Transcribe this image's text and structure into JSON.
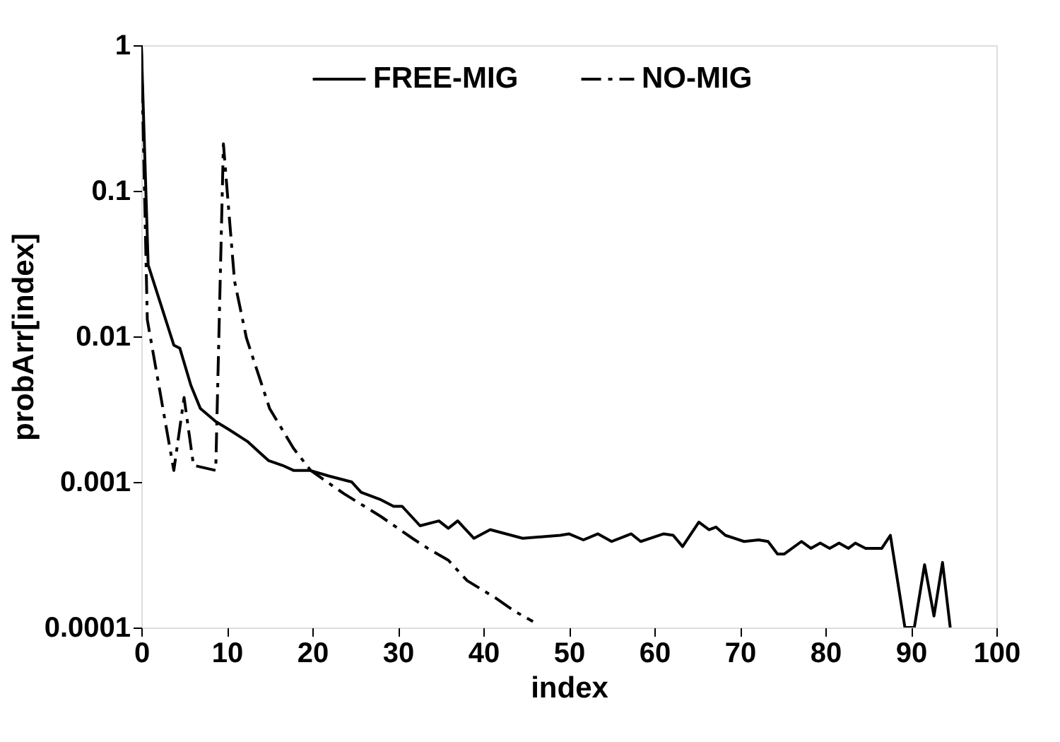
{
  "chart_data": {
    "type": "line",
    "xlabel": "index",
    "ylabel": "probArr[index]",
    "log": "y",
    "xlim": [
      0,
      100
    ],
    "xticks": [
      0,
      10,
      20,
      30,
      40,
      50,
      60,
      70,
      80,
      90,
      100
    ],
    "ylim": [
      0.0001,
      1
    ],
    "yticks": [
      0.0001,
      0.001,
      0.01,
      0.1,
      1
    ],
    "grid": false,
    "legend": "top",
    "marker": "none",
    "series": [
      {
        "name": "FREE-MIG",
        "color": "#000000",
        "line_style": "solid",
        "x": [
          0,
          0.8,
          3.8,
          4.5,
          5.8,
          6.9,
          8.7,
          10.2,
          12.4,
          13.8,
          14.9,
          16.5,
          17.8,
          19.7,
          21.9,
          24.6,
          25.7,
          27.9,
          29.5,
          30.5,
          32.6,
          34.8,
          35.9,
          37.0,
          38.9,
          40.8,
          44.6,
          49,
          50,
          51.7,
          53.4,
          55,
          57.3,
          58.4,
          61.1,
          62.2,
          63.3,
          65.2,
          66.4,
          67.2,
          68.3,
          70.5,
          72.2,
          73.3,
          74.4,
          75.2,
          77.2,
          78.3,
          79.4,
          80.5,
          81.6,
          82.7,
          83.5,
          84.7,
          86.6,
          87.6,
          89.3,
          90.4,
          91.6,
          92.7,
          93.7,
          94.6
        ],
        "values": [
          1,
          0.031,
          0.0087,
          0.0083,
          0.0046,
          0.0032,
          0.0026,
          0.0023,
          0.0019,
          0.0016,
          0.0014,
          0.0013,
          0.0012,
          0.0012,
          0.0011,
          0.001,
          0.00085,
          0.00076,
          0.00068,
          0.00068,
          0.0005,
          0.00054,
          0.00048,
          0.00054,
          0.00041,
          0.00047,
          0.00041,
          0.00043,
          0.00044,
          0.0004,
          0.00044,
          0.00039,
          0.00044,
          0.00039,
          0.00044,
          0.00043,
          0.00036,
          0.00053,
          0.00047,
          0.00049,
          0.00043,
          0.00039,
          0.0004,
          0.00039,
          0.00032,
          0.00032,
          0.00039,
          0.00035,
          0.00038,
          0.00035,
          0.00038,
          0.00035,
          0.00038,
          0.00035,
          0.00035,
          0.00043,
          0.0001,
          0.0001,
          0.00027,
          0.00012,
          0.00028,
          0.0001
        ]
      },
      {
        "name": "NO-MIG",
        "color": "#000000",
        "line_style": "dashdot",
        "x": [
          0,
          0.7,
          3.8,
          5.0,
          6.1,
          8.7,
          9.6,
          10.1,
          10.9,
          12.3,
          15.0,
          17.8,
          19.8,
          23.7,
          28,
          31.7,
          33.5,
          35.9,
          38.1,
          41.4,
          43.6,
          45.8
        ],
        "values": [
          1,
          0.013,
          0.0012,
          0.0038,
          0.0013,
          0.0012,
          0.21,
          0.09,
          0.024,
          0.0097,
          0.0032,
          0.0017,
          0.0012,
          0.00083,
          0.00058,
          0.00041,
          0.00035,
          0.00029,
          0.00021,
          0.00016,
          0.00013,
          0.00011
        ]
      }
    ]
  }
}
